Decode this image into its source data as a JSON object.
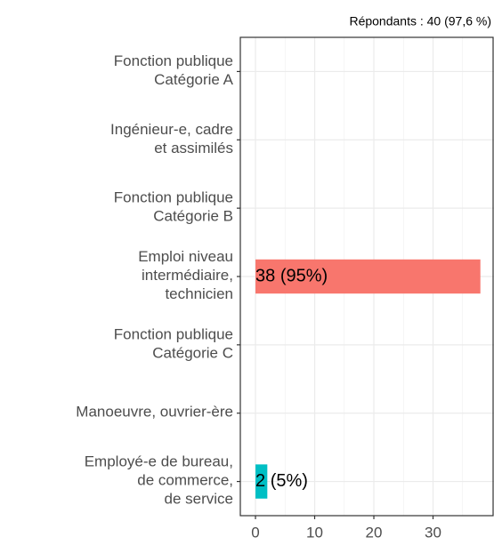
{
  "chart_data": {
    "type": "bar",
    "orientation": "horizontal",
    "subtitle": "Répondants : 40 (97,6 %)",
    "categories": [
      "Fonction publique\nCatégorie A",
      "Ingénieur-e, cadre\net assimilés",
      "Fonction publique\nCatégorie B",
      "Emploi niveau\nintermédiaire,\ntechnicien",
      "Fonction publique\nCatégorie C",
      "Manoeuvre, ouvrier-ère",
      "Employé-e de bureau,\nde commerce,\nde service"
    ],
    "values": [
      0,
      0,
      0,
      38,
      0,
      0,
      2
    ],
    "value_labels": [
      null,
      null,
      null,
      "38 (95%)",
      null,
      null,
      "2 (5%)"
    ],
    "colors": [
      "#F8766D",
      "#F8766D",
      "#F8766D",
      "#F8766D",
      "#F8766D",
      "#F8766D",
      "#00BFC4"
    ],
    "xlim": [
      -2.56,
      40.3
    ],
    "xticks": [
      0,
      10,
      20,
      30
    ],
    "xminor": [
      5,
      15,
      25,
      35
    ],
    "grid": true
  }
}
